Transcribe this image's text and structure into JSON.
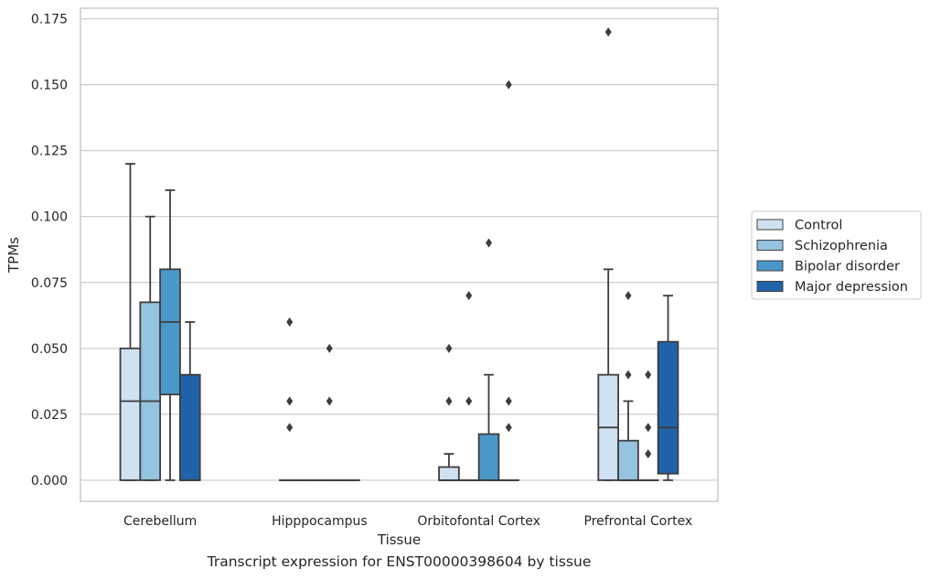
{
  "caption": "Transcript expression for ENST00000398604 by tissue",
  "chart_data": {
    "type": "boxplot",
    "xlabel": "Tissue",
    "ylabel": "TPMs",
    "ylim": [
      -0.008,
      0.179
    ],
    "yticks": [
      "0.000",
      "0.025",
      "0.050",
      "0.075",
      "0.100",
      "0.125",
      "0.150",
      "0.175"
    ],
    "ytick_values": [
      0,
      0.025,
      0.05,
      0.075,
      0.1,
      0.125,
      0.15,
      0.175
    ],
    "grid": true,
    "legend_position": "right",
    "categories": [
      "Cerebellum",
      "Hipppocampus",
      "Orbitofontal Cortex",
      "Prefrontal Cortex"
    ],
    "series": [
      {
        "name": "Control",
        "color": "#d0e1f2",
        "boxes": [
          {
            "q1": 0,
            "median": 0.03,
            "q3": 0.05,
            "whislo": 0,
            "whishi": 0.12,
            "fliers": []
          },
          {
            "q1": 0,
            "median": 0,
            "q3": 0,
            "whislo": 0,
            "whishi": 0,
            "fliers": [
              0.06,
              0.03,
              0.02
            ]
          },
          {
            "q1": 0,
            "median": 0,
            "q3": 0.005,
            "whislo": 0,
            "whishi": 0.01,
            "fliers": [
              0.05,
              0.03
            ]
          },
          {
            "q1": 0,
            "median": 0.02,
            "q3": 0.04,
            "whislo": 0,
            "whishi": 0.08,
            "fliers": [
              0.17
            ]
          }
        ]
      },
      {
        "name": "Schizophrenia",
        "color": "#94c4df",
        "boxes": [
          {
            "q1": 0,
            "median": 0.03,
            "q3": 0.0675,
            "whislo": 0,
            "whishi": 0.1,
            "fliers": []
          },
          {
            "q1": 0,
            "median": 0,
            "q3": 0,
            "whislo": 0,
            "whishi": 0,
            "fliers": []
          },
          {
            "q1": 0,
            "median": 0,
            "q3": 0,
            "whislo": 0,
            "whishi": 0,
            "fliers": [
              0.07,
              0.03
            ]
          },
          {
            "q1": 0,
            "median": 0,
            "q3": 0.015,
            "whislo": 0,
            "whishi": 0.03,
            "fliers": [
              0.07,
              0.04
            ]
          }
        ]
      },
      {
        "name": "Bipolar disorder",
        "color": "#4a98c9",
        "boxes": [
          {
            "q1": 0.0325,
            "median": 0.06,
            "q3": 0.08,
            "whislo": 0,
            "whishi": 0.11,
            "fliers": []
          },
          {
            "q1": 0,
            "median": 0,
            "q3": 0,
            "whislo": 0,
            "whishi": 0,
            "fliers": [
              0.05,
              0.03
            ]
          },
          {
            "q1": 0,
            "median": 0,
            "q3": 0.0175,
            "whislo": 0,
            "whishi": 0.04,
            "fliers": [
              0.09
            ]
          },
          {
            "q1": 0,
            "median": 0,
            "q3": 0,
            "whislo": 0,
            "whishi": 0,
            "fliers": [
              0.04,
              0.02,
              0.01
            ]
          }
        ]
      },
      {
        "name": "Major depression",
        "color": "#2163aa",
        "boxes": [
          {
            "q1": 0,
            "median": 0,
            "q3": 0.04,
            "whislo": 0,
            "whishi": 0.06,
            "fliers": []
          },
          {
            "q1": 0,
            "median": 0,
            "q3": 0,
            "whislo": 0,
            "whishi": 0,
            "fliers": []
          },
          {
            "q1": 0,
            "median": 0,
            "q3": 0,
            "whislo": 0,
            "whishi": 0,
            "fliers": [
              0.15,
              0.03,
              0.02
            ]
          },
          {
            "q1": 0.0025,
            "median": 0.02,
            "q3": 0.0525,
            "whislo": 0,
            "whishi": 0.07,
            "fliers": []
          }
        ]
      }
    ]
  }
}
